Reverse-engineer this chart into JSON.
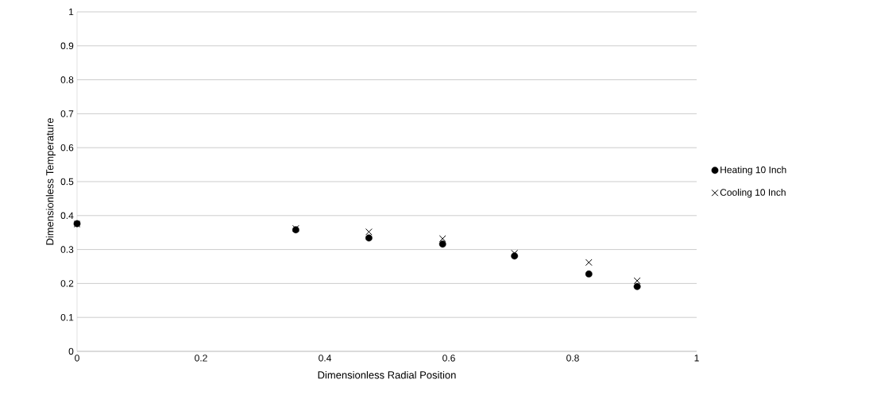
{
  "chart_data": {
    "type": "scatter",
    "xlabel": "Dimensionless Radial Position",
    "ylabel": "Dimensionless Temperature",
    "x": [
      0,
      0.353,
      0.471,
      0.59,
      0.706,
      0.826,
      0.904
    ],
    "series": [
      {
        "name": "Heating 10 Inch",
        "color": "#000000",
        "marker": "circle",
        "values": [
          0.376,
          0.358,
          0.334,
          0.316,
          0.281,
          0.228,
          0.191
        ]
      },
      {
        "name": "Cooling 10 Inch",
        "color": "#000000",
        "marker": "cross",
        "values": [
          0.375,
          0.362,
          0.352,
          0.332,
          0.289,
          0.262,
          0.208
        ]
      }
    ],
    "xlim": [
      0,
      1
    ],
    "ylim": [
      0,
      1
    ],
    "xticks": [
      0,
      0.2,
      0.4,
      0.6,
      0.8,
      1
    ],
    "yticks": [
      0,
      0.1,
      0.2,
      0.3,
      0.4,
      0.5,
      0.6,
      0.7,
      0.8,
      0.9,
      1
    ],
    "grid": "y",
    "legend": "right"
  }
}
